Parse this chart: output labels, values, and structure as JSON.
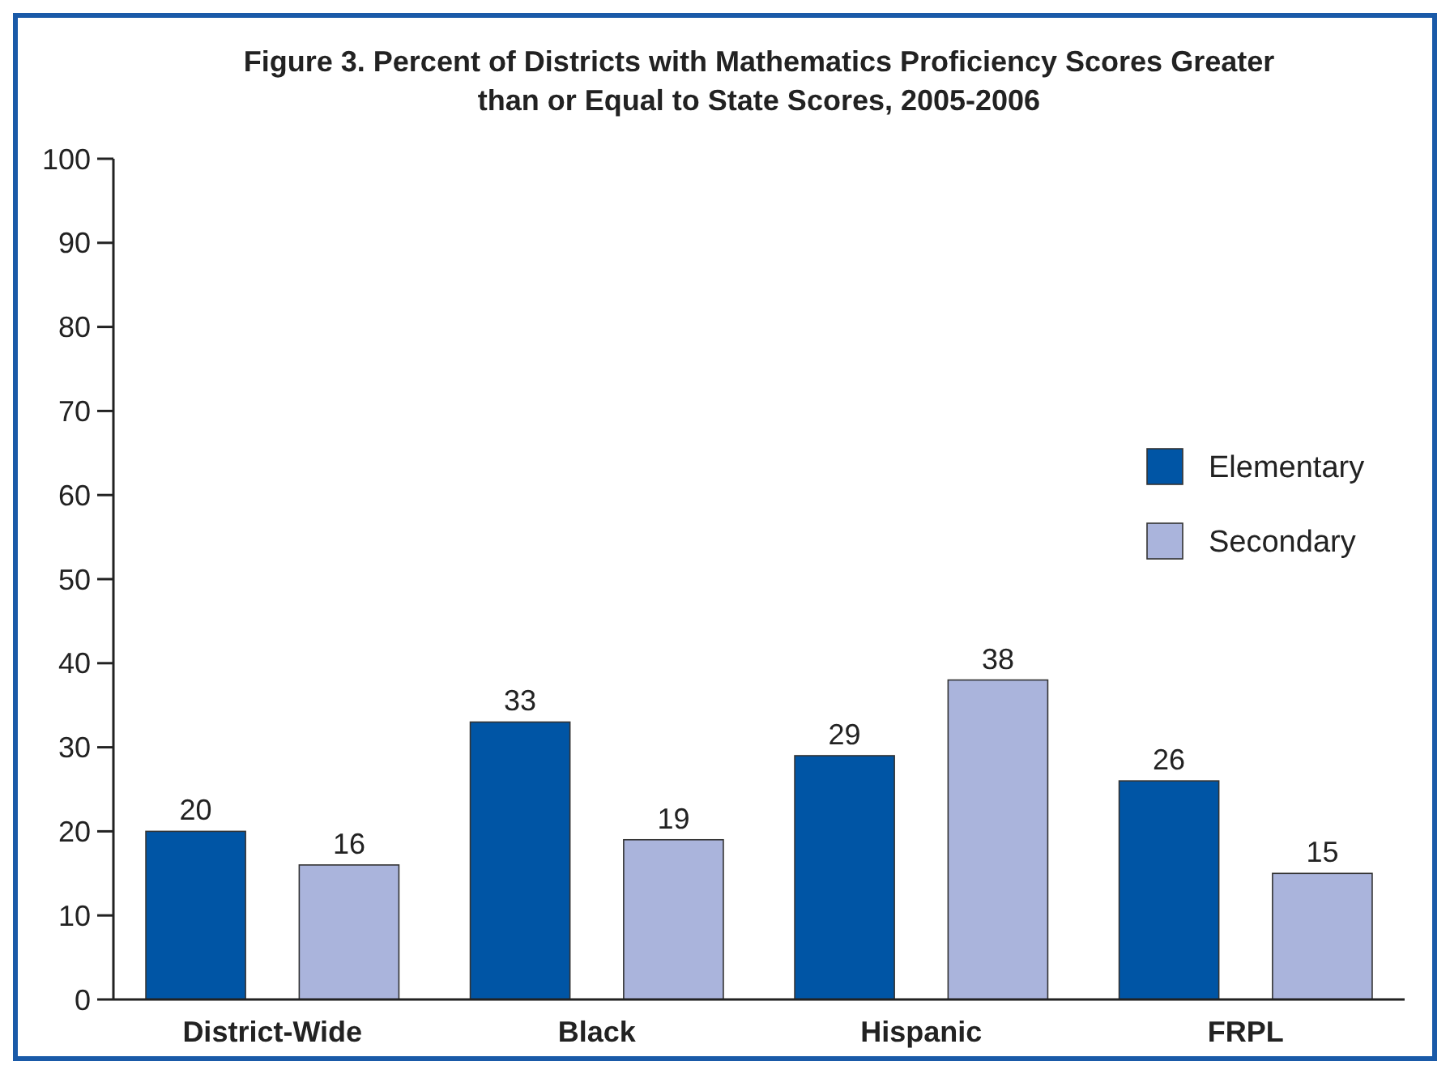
{
  "chart_data": {
    "type": "bar",
    "title": "Figure 3. Percent of Districts with Mathematics Proficiency Scores Greater than or Equal to State Scores, 2005-2006",
    "categories": [
      "District-Wide",
      "Black",
      "Hispanic",
      "FRPL"
    ],
    "series": [
      {
        "name": "Elementary",
        "color": "#0055a5",
        "values": [
          20,
          33,
          29,
          26
        ]
      },
      {
        "name": "Secondary",
        "color": "#aab4dc",
        "values": [
          16,
          19,
          38,
          15
        ]
      }
    ],
    "ylim": [
      0,
      100
    ],
    "yticks": [
      0,
      10,
      20,
      30,
      40,
      50,
      60,
      70,
      80,
      90,
      100
    ],
    "grid": false,
    "legend": "right",
    "data_labels": true
  }
}
